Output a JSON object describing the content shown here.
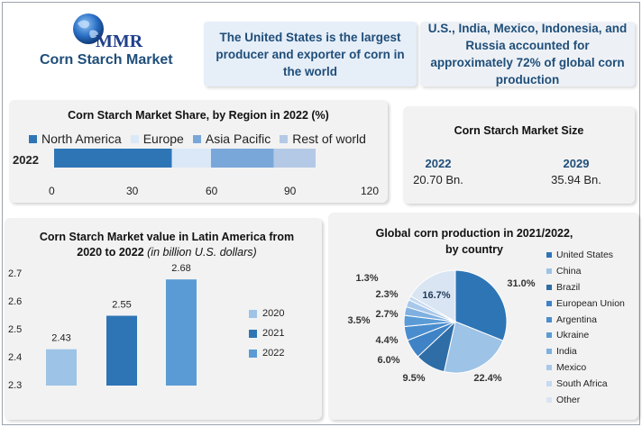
{
  "brand": {
    "logo_text": "MMR",
    "title": "Corn Starch Market"
  },
  "facts": [
    "The United States is the largest producer and exporter of corn in the world",
    "U.S., India, Mexico, Indonesia, and Russia accounted for approximately 72% of global corn production"
  ],
  "region_share": {
    "title": "Corn Starch Market Share, by Region in 2022 (%)",
    "legend": [
      "North America",
      "Europe",
      "Asia Pacific",
      "Rest of world"
    ],
    "row_label": "2022",
    "ticks": [
      "0",
      "30",
      "60",
      "90",
      "120"
    ]
  },
  "market_size": {
    "title": "Corn Starch Market Size",
    "items": [
      {
        "year": "2022",
        "value": "20.70 Bn."
      },
      {
        "year": "2029",
        "value": "35.94 Bn."
      }
    ]
  },
  "latin": {
    "title_main": "Corn Starch Market value in Latin America from 2020 to 2022",
    "title_unit": "(in billion U.S. dollars)",
    "yticks": [
      "2.7",
      "2.6",
      "2.5",
      "2.4",
      "2.3"
    ],
    "legend": [
      "2020",
      "2021",
      "2022"
    ]
  },
  "global": {
    "title": "Global corn production in 2021/2022, by country",
    "legend": [
      "United States",
      "China",
      "Brazil",
      "European Union",
      "Argentina",
      "Ukraine",
      "India",
      "Mexico",
      "South Africa",
      "Other"
    ]
  },
  "chart_data": [
    {
      "type": "bar",
      "orientation": "horizontal",
      "stacked": true,
      "categories": [
        "2022"
      ],
      "series": [
        {
          "name": "North America",
          "values": [
            45
          ],
          "color": "#2e75b6"
        },
        {
          "name": "Europe",
          "values": [
            15
          ],
          "color": "#dae8f7"
        },
        {
          "name": "Asia Pacific",
          "values": [
            24
          ],
          "color": "#7aa7d9"
        },
        {
          "name": "Rest of world",
          "values": [
            16
          ],
          "color": "#b4c9e6"
        }
      ],
      "title": "Corn Starch Market Share, by Region in 2022 (%)",
      "xlim": [
        0,
        120
      ]
    },
    {
      "type": "bar",
      "categories": [
        "2020",
        "2021",
        "2022"
      ],
      "values": [
        2.43,
        2.55,
        2.68
      ],
      "colors": [
        "#9dc3e6",
        "#2e75b6",
        "#5b9bd5"
      ],
      "title": "Corn Starch Market value in Latin America from 2020 to 2022 (in billion U.S. dollars)",
      "ylim": [
        2.3,
        2.7
      ]
    },
    {
      "type": "pie",
      "title": "Global corn production in 2021/2022, by country",
      "labels": [
        "United States",
        "China",
        "Brazil",
        "European Union",
        "Argentina",
        "Ukraine",
        "India",
        "Mexico",
        "South Africa",
        "Other"
      ],
      "values": [
        31.0,
        22.4,
        9.5,
        6.0,
        4.4,
        3.5,
        2.7,
        2.3,
        1.3,
        16.7
      ],
      "value_labels": [
        "31.0%",
        "22.4%",
        "9.5%",
        "6.0%",
        "4.4%",
        "3.5%",
        "2.7%",
        "2.3%",
        "1.3%",
        "16.7%"
      ],
      "colors": [
        "#2e75b6",
        "#9dc3e6",
        "#2f6da6",
        "#3f83c6",
        "#4a8dce",
        "#5b9bd5",
        "#7fb0e0",
        "#a8c8ea",
        "#c5d9f1",
        "#dae5f3"
      ]
    }
  ]
}
